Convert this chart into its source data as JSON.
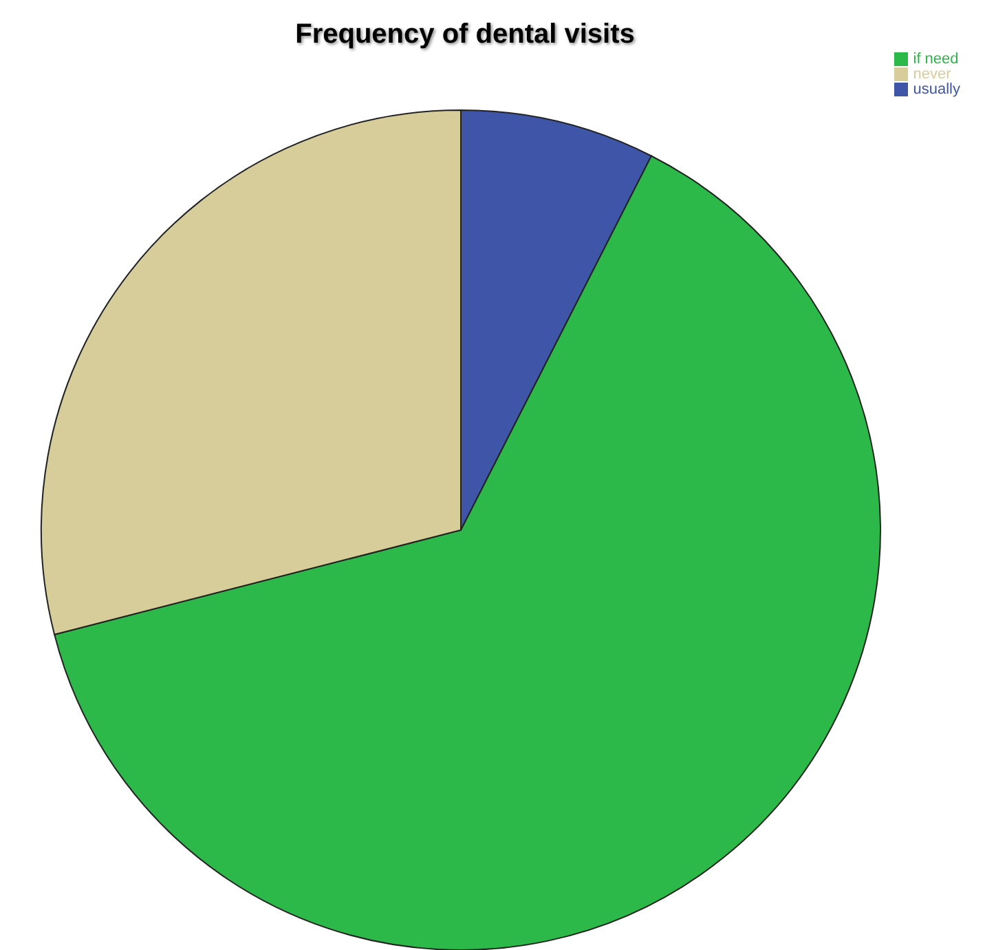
{
  "chart_data": {
    "type": "pie",
    "title": "Frequency of dental visits",
    "categories": [
      "usually",
      "if need",
      "never"
    ],
    "values": [
      7.5,
      63.5,
      29.0
    ],
    "colors": [
      "#3f55a8",
      "#2db84a",
      "#d6cd9b"
    ],
    "legend": "top right"
  }
}
